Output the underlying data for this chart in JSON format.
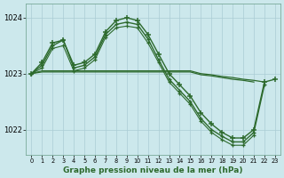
{
  "x": [
    0,
    1,
    2,
    3,
    4,
    5,
    6,
    7,
    8,
    9,
    10,
    11,
    12,
    13,
    14,
    15,
    16,
    17,
    18,
    19,
    20,
    21,
    22,
    23
  ],
  "line_a": [
    1023.0,
    1023.2,
    1023.55,
    1023.6,
    1023.15,
    1023.2,
    1023.35,
    1023.75,
    1023.95,
    1024.0,
    1023.95,
    1023.7,
    1023.35,
    1023.0,
    1022.8,
    1022.6,
    1022.3,
    1022.1,
    1021.95,
    1021.85,
    1021.85,
    1022.0,
    1022.85,
    1022.9
  ],
  "line_b": [
    1023.0,
    1023.15,
    1023.5,
    1023.6,
    1023.1,
    1023.15,
    1023.3,
    1023.7,
    1023.88,
    1023.92,
    1023.88,
    1023.62,
    1023.25,
    1022.9,
    1022.7,
    1022.5,
    1022.2,
    1022.0,
    1021.88,
    1021.78,
    1021.78,
    1021.95,
    1022.8,
    null
  ],
  "line_c": [
    1023.0,
    1023.1,
    1023.45,
    1023.5,
    1023.05,
    1023.1,
    1023.25,
    1023.65,
    1023.82,
    1023.85,
    1023.82,
    1023.55,
    1023.2,
    1022.85,
    1022.65,
    1022.45,
    1022.15,
    1021.95,
    1021.82,
    1021.72,
    1021.72,
    1021.9,
    null,
    null
  ],
  "line_flat1": [
    1023.0,
    1023.05,
    1023.05,
    1023.05,
    1023.05,
    1023.05,
    1023.05,
    1023.05,
    1023.05,
    1023.05,
    1023.05,
    1023.05,
    1023.05,
    1023.05,
    1023.05,
    1023.05,
    1023.0,
    1022.98,
    1022.95,
    1022.93,
    1022.9,
    1022.88,
    1022.85,
    null
  ],
  "line_flat2": [
    1023.0,
    1023.03,
    1023.03,
    1023.03,
    1023.03,
    1023.03,
    1023.03,
    1023.03,
    1023.03,
    1023.03,
    1023.03,
    1023.03,
    1023.03,
    1023.03,
    1023.03,
    1023.03,
    1022.98,
    1022.96,
    1022.93,
    1022.9,
    1022.88,
    1022.85,
    null,
    null
  ],
  "bg_color": "#cce8ec",
  "grid_color": "#aaccd4",
  "line_color": "#2d6a2d",
  "xlabel": "Graphe pression niveau de la mer (hPa)",
  "ylim": [
    1021.55,
    1024.25
  ],
  "yticks": [
    1022,
    1023,
    1024
  ],
  "xticks": [
    0,
    1,
    2,
    3,
    4,
    5,
    6,
    7,
    8,
    9,
    10,
    11,
    12,
    13,
    14,
    15,
    16,
    17,
    18,
    19,
    20,
    21,
    22,
    23
  ]
}
